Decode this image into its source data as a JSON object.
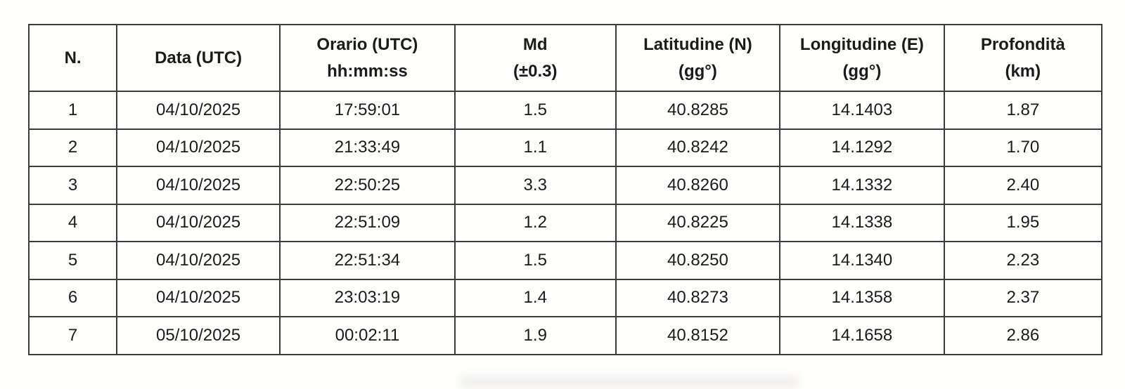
{
  "table": {
    "columns": [
      {
        "line1": "N.",
        "line2": ""
      },
      {
        "line1": "Data (UTC)",
        "line2": ""
      },
      {
        "line1": "Orario (UTC)",
        "line2": "hh:mm:ss"
      },
      {
        "line1": "Md",
        "line2": "(±0.3)"
      },
      {
        "line1": "Latitudine (N)",
        "line2": "(gg°)"
      },
      {
        "line1": "Longitudine (E)",
        "line2": "(gg°)"
      },
      {
        "line1": "Profondità",
        "line2": "(km)"
      }
    ],
    "rows": [
      [
        "1",
        "04/10/2025",
        "17:59:01",
        "1.5",
        "40.8285",
        "14.1403",
        "1.87"
      ],
      [
        "2",
        "04/10/2025",
        "21:33:49",
        "1.1",
        "40.8242",
        "14.1292",
        "1.70"
      ],
      [
        "3",
        "04/10/2025",
        "22:50:25",
        "3.3",
        "40.8260",
        "14.1332",
        "2.40"
      ],
      [
        "4",
        "04/10/2025",
        "22:51:09",
        "1.2",
        "40.8225",
        "14.1338",
        "1.95"
      ],
      [
        "5",
        "04/10/2025",
        "22:51:34",
        "1.5",
        "40.8250",
        "14.1340",
        "2.23"
      ],
      [
        "6",
        "04/10/2025",
        "23:03:19",
        "1.4",
        "40.8273",
        "14.1358",
        "2.37"
      ],
      [
        "7",
        "05/10/2025",
        "00:02:11",
        "1.9",
        "40.8152",
        "14.1658",
        "2.86"
      ]
    ]
  },
  "colors": {
    "border": "#3c3c3c",
    "text": "#1b1b1b",
    "background": "#fefefd"
  }
}
